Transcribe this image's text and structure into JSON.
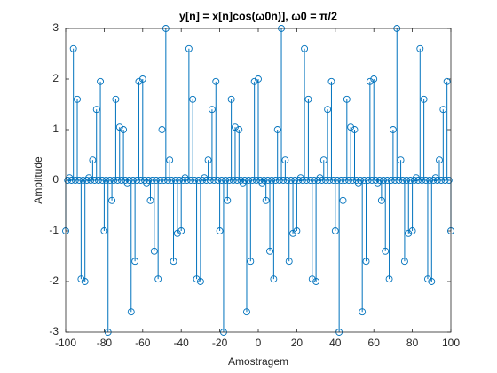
{
  "chart_data": {
    "type": "stem",
    "title": "y[n] = x[n]cos(ω0n)], ω0 = π/2",
    "xlabel": "Amostragem",
    "ylabel": "Amplitude",
    "color": "#0072bd",
    "xlim": [
      -100,
      100
    ],
    "xticks": [
      -100,
      -80,
      -60,
      -40,
      -20,
      0,
      20,
      40,
      60,
      80,
      100
    ],
    "ylim": [
      -3,
      3
    ],
    "yticks": [
      -3,
      -2,
      -1,
      0,
      1,
      2,
      3
    ],
    "x": [
      -100,
      -99,
      -98,
      -97,
      -96,
      -95,
      -94,
      -93,
      -92,
      -91,
      -90,
      -89,
      -88,
      -87,
      -86,
      -85,
      -84,
      -83,
      -82,
      -81,
      -80,
      -79,
      -78,
      -77,
      -76,
      -75,
      -74,
      -73,
      -72,
      -71,
      -70,
      -69,
      -68,
      -67,
      -66,
      -65,
      -64,
      -63,
      -62,
      -61,
      -60,
      -59,
      -58,
      -57,
      -56,
      -55,
      -54,
      -53,
      -52,
      -51,
      -50,
      -49,
      -48,
      -47,
      -46,
      -45,
      -44,
      -43,
      -42,
      -41,
      -40,
      -39,
      -38,
      -37,
      -36,
      -35,
      -34,
      -33,
      -32,
      -31,
      -30,
      -29,
      -28,
      -27,
      -26,
      -25,
      -24,
      -23,
      -22,
      -21,
      -20,
      -19,
      -18,
      -17,
      -16,
      -15,
      -14,
      -13,
      -12,
      -11,
      -10,
      -9,
      -8,
      -7,
      -6,
      -5,
      -4,
      -3,
      -2,
      -1,
      0,
      1,
      2,
      3,
      4,
      5,
      6,
      7,
      8,
      9,
      10,
      11,
      12,
      13,
      14,
      15,
      16,
      17,
      18,
      19,
      20,
      21,
      22,
      23,
      24,
      25,
      26,
      27,
      28,
      29,
      30,
      31,
      32,
      33,
      34,
      35,
      36,
      37,
      38,
      39,
      40,
      41,
      42,
      43,
      44,
      45,
      46,
      47,
      48,
      49,
      50,
      51,
      52,
      53,
      54,
      55,
      56,
      57,
      58,
      59,
      60,
      61,
      62,
      63,
      64,
      65,
      66,
      67,
      68,
      69,
      70,
      71,
      72,
      73,
      74,
      75,
      76,
      77,
      78,
      79,
      80,
      81,
      82,
      83,
      84,
      85,
      86,
      87,
      88,
      89,
      90,
      91,
      92,
      93,
      94,
      95,
      96,
      97,
      98,
      99,
      100
    ],
    "values": [
      -1,
      0,
      0.05,
      0,
      2.6,
      0,
      1.6,
      0,
      -1.95,
      0,
      -2,
      0,
      0.05,
      0,
      0.4,
      0,
      1.4,
      0,
      1.95,
      0,
      -1,
      0,
      -3,
      0,
      -0.4,
      0,
      1.6,
      0,
      1.05,
      0,
      1,
      0,
      -0.05,
      0,
      -2.6,
      0,
      -1.6,
      0,
      1.95,
      0,
      2,
      0,
      -0.05,
      0,
      -0.4,
      0,
      -1.4,
      0,
      -1.95,
      0,
      1,
      0,
      3,
      0,
      0.4,
      0,
      -1.6,
      0,
      -1.05,
      0,
      -1,
      0,
      0.05,
      0,
      2.6,
      0,
      1.6,
      0,
      -1.95,
      0,
      -2,
      0,
      0.05,
      0,
      0.4,
      0,
      1.4,
      0,
      1.95,
      0,
      -1,
      0,
      -3,
      0,
      -0.4,
      0,
      1.6,
      0,
      1.05,
      0,
      1,
      0,
      -0.05,
      0,
      -2.6,
      0,
      -1.6,
      0,
      1.95,
      0,
      2,
      0,
      -0.05,
      0,
      -0.4,
      0,
      -1.4,
      0,
      -1.95,
      0,
      1,
      0,
      3,
      0,
      0.4,
      0,
      -1.6,
      0,
      -1.05,
      0,
      -1,
      0,
      0.05,
      0,
      2.6,
      0,
      1.6,
      0,
      -1.95,
      0,
      -2,
      0,
      0.05,
      0,
      0.4,
      0,
      1.4,
      0,
      1.95,
      0,
      -1,
      0,
      -3,
      0,
      -0.4,
      0,
      1.6,
      0,
      1.05,
      0,
      1,
      0,
      -0.05,
      0,
      -2.6,
      0,
      -1.6,
      0,
      1.95,
      0,
      2,
      0,
      -0.05,
      0,
      -0.4,
      0,
      -1.4,
      0,
      -1.95,
      0,
      1,
      0,
      3,
      0,
      0.4,
      0,
      -1.6,
      0,
      -1.05,
      0,
      -1,
      0,
      0.05,
      0,
      2.6,
      0,
      1.6,
      0,
      -1.95,
      0,
      -2,
      0,
      0.05,
      0,
      0.4,
      0,
      1.4,
      0,
      1.95,
      0,
      -1
    ]
  }
}
